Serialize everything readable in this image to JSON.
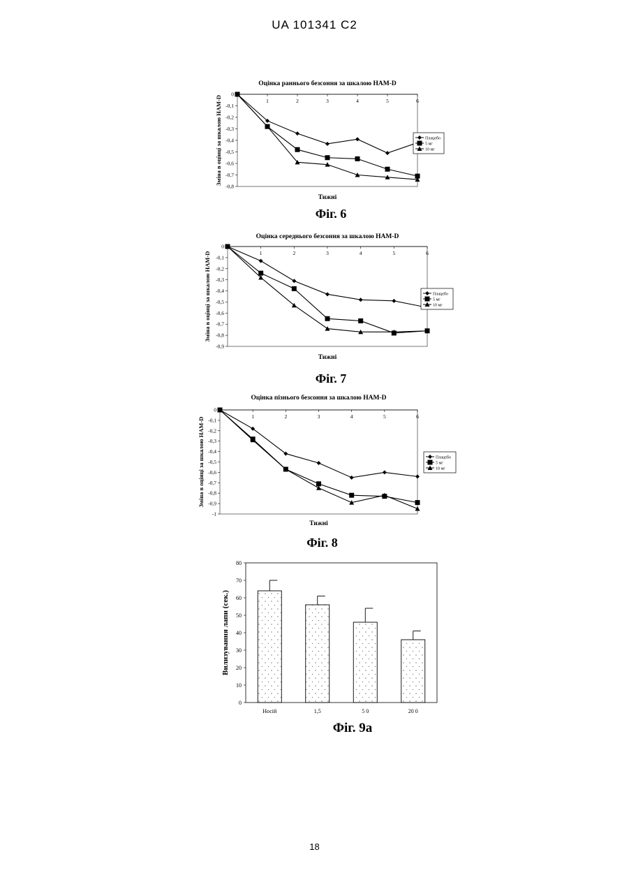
{
  "page": {
    "header": "UA   101341   C2",
    "page_number": "18"
  },
  "figures": [
    {
      "caption": "Фіг. 6"
    },
    {
      "caption": "Фіг. 7"
    },
    {
      "caption": "Фіг. 8"
    },
    {
      "caption": "Фіг. 9а"
    }
  ],
  "chart_data": [
    {
      "type": "line",
      "title": "Оцінка раннього безсоння за шкалою HAM-D",
      "xlabel": "Тижні",
      "ylabel": "Зміна в оцінці за шкалою HAM-D",
      "x": [
        0,
        1,
        2,
        3,
        4,
        5,
        6
      ],
      "xticks": [
        "1",
        "2",
        "3",
        "4",
        "5",
        "6"
      ],
      "ylim": [
        -0.8,
        0
      ],
      "yticks": [
        "0",
        "-0,1",
        "-0,2",
        "-0,3",
        "-0,4",
        "-0,5",
        "-0,6",
        "-0,7",
        "-0,8"
      ],
      "legend": "right",
      "series": [
        {
          "name": "Плацебо",
          "marker": "diamond",
          "values": [
            0,
            -0.23,
            -0.34,
            -0.43,
            -0.39,
            -0.51,
            -0.42
          ]
        },
        {
          "name": "5 мг",
          "marker": "square",
          "values": [
            0,
            -0.28,
            -0.48,
            -0.55,
            -0.56,
            -0.65,
            -0.71
          ]
        },
        {
          "name": "10 мг",
          "marker": "triangle",
          "values": [
            0,
            -0.28,
            -0.59,
            -0.61,
            -0.7,
            -0.72,
            -0.74
          ]
        }
      ]
    },
    {
      "type": "line",
      "title": "Оцінка середнього безсоння за шкалою HAM-D",
      "xlabel": "Тижні",
      "ylabel": "Зміна в оцінці за шкалою HAM-D",
      "x": [
        0,
        1,
        2,
        3,
        4,
        5,
        6
      ],
      "xticks": [
        "1",
        "2",
        "3",
        "4",
        "5",
        "6"
      ],
      "ylim": [
        -0.9,
        0
      ],
      "yticks": [
        "0",
        "-0,1",
        "-0,2",
        "-0,3",
        "-0,4",
        "-0,5",
        "-0,6",
        "-0,7",
        "-0,8",
        "-0,9"
      ],
      "legend": "right",
      "series": [
        {
          "name": "Плацебо",
          "marker": "diamond",
          "values": [
            0,
            -0.13,
            -0.31,
            -0.43,
            -0.48,
            -0.49,
            -0.55
          ]
        },
        {
          "name": "5 мг",
          "marker": "square",
          "values": [
            0,
            -0.24,
            -0.38,
            -0.65,
            -0.67,
            -0.78,
            -0.76
          ]
        },
        {
          "name": "10 мг",
          "marker": "triangle",
          "values": [
            0,
            -0.28,
            -0.53,
            -0.74,
            -0.77,
            -0.77,
            -0.76
          ]
        }
      ]
    },
    {
      "type": "line",
      "title": "Оцінка  пізнього  безсоння за шкалою HAM-D",
      "xlabel": "Тижні",
      "ylabel": "Зміна в оцінці за шкалою HAM-D",
      "x": [
        0,
        1,
        2,
        3,
        4,
        5,
        6
      ],
      "xticks": [
        "1",
        "2",
        "3",
        "4",
        "5",
        "6"
      ],
      "ylim": [
        -1,
        0
      ],
      "yticks": [
        "0",
        "-0,1",
        "-0,2",
        "-0,3",
        "-0,4",
        "-0,5",
        "-0,6",
        "-0,7",
        "-0,8",
        "-0,9",
        "-1"
      ],
      "legend": "right",
      "series": [
        {
          "name": "Плацебо",
          "marker": "diamond",
          "values": [
            0,
            -0.18,
            -0.42,
            -0.51,
            -0.65,
            -0.6,
            -0.64
          ]
        },
        {
          "name": "5 мг",
          "marker": "square",
          "values": [
            0,
            -0.28,
            -0.57,
            -0.71,
            -0.82,
            -0.83,
            -0.89
          ]
        },
        {
          "name": "10 мг",
          "marker": "triangle",
          "values": [
            0,
            -0.29,
            -0.57,
            -0.75,
            -0.89,
            -0.82,
            -0.95
          ]
        }
      ]
    },
    {
      "type": "bar",
      "title": "",
      "xlabel": "",
      "ylabel": "Вилизування лапи (сек.)",
      "categories": [
        "Носій",
        "1,5",
        "5 0",
        "20 0"
      ],
      "values": [
        64,
        56,
        46,
        36
      ],
      "errors": [
        6,
        5,
        8,
        5
      ],
      "ylim": [
        0,
        80
      ],
      "yticks": [
        "0",
        "10",
        "20",
        "30",
        "40",
        "50",
        "60",
        "70",
        "80"
      ]
    }
  ]
}
